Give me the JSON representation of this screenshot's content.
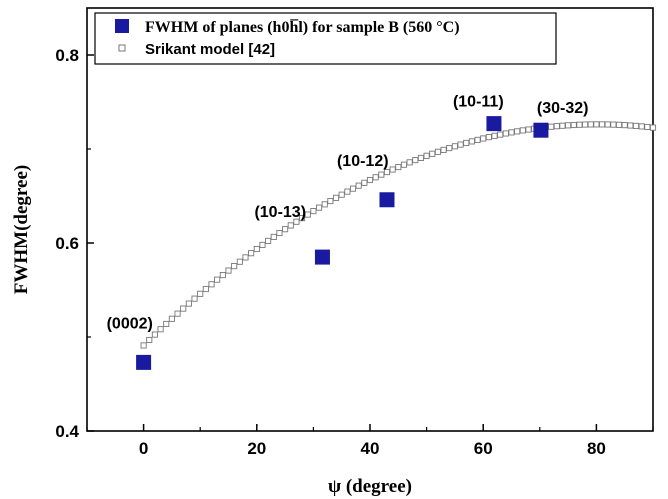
{
  "chart_data": {
    "type": "scatter",
    "title": "",
    "xlabel": "ψ (degree)",
    "ylabel": "FWHM(degree)",
    "xlim": [
      -10,
      90
    ],
    "ylim": [
      0.4,
      0.85
    ],
    "x_ticks": [
      0,
      20,
      40,
      60,
      80
    ],
    "y_ticks": [
      0.4,
      0.6,
      0.8
    ],
    "grid": false,
    "legend_position": "top",
    "series": [
      {
        "name": "FWHM of planes (h0h̅l) for sample B (560 °C)",
        "marker": "filled-square",
        "color": "#1a1aa0",
        "points": [
          {
            "x": 0,
            "y": 0.473
          },
          {
            "x": 31.6,
            "y": 0.585
          },
          {
            "x": 43.0,
            "y": 0.646
          },
          {
            "x": 61.9,
            "y": 0.727
          },
          {
            "x": 70.2,
            "y": 0.72
          }
        ]
      },
      {
        "name": "Srikant model [42]",
        "marker": "open-square",
        "color": "#777777",
        "model": {
          "a": 0.491,
          "b": 0.00586,
          "c": -3.65e-05
        },
        "x_start": 0,
        "x_end": 90,
        "x_step": 1
      }
    ],
    "annotations": [
      {
        "text": "(0002)",
        "x": 0,
        "y": 0.473
      },
      {
        "text": "(10-13)",
        "x": 31.6,
        "y": 0.585
      },
      {
        "text": "(10-12)",
        "x": 43.0,
        "y": 0.646
      },
      {
        "text": "(10-11)",
        "x": 61.9,
        "y": 0.727
      },
      {
        "text": "(30-32)",
        "x": 70.2,
        "y": 0.72
      }
    ]
  }
}
